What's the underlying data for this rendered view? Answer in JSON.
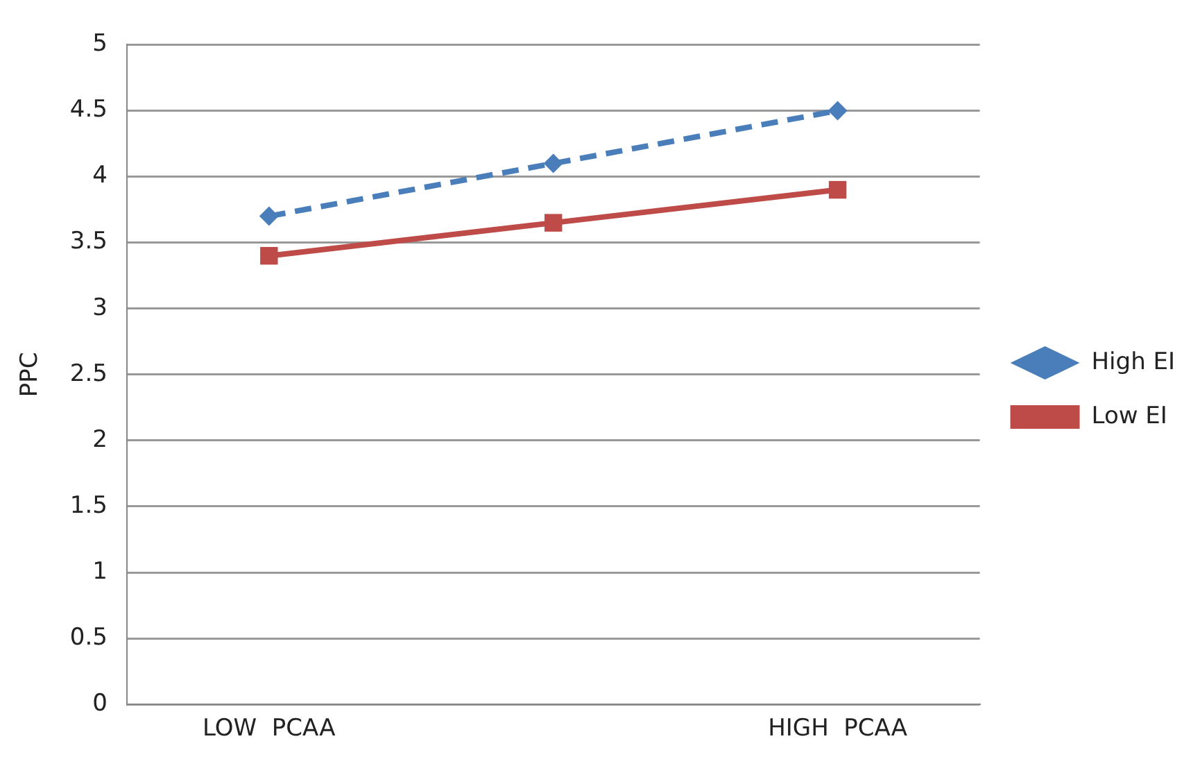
{
  "chart_data": {
    "type": "line",
    "ylabel": "PPC",
    "categories": [
      "LOW  PCAA",
      null,
      "HIGH  PCAA"
    ],
    "series": [
      {
        "name": "High EI",
        "color": "#4a7ebb",
        "values": [
          3.7,
          4.1,
          4.5
        ],
        "marker": "diamond",
        "line_style": "dashed"
      },
      {
        "name": "Low EI",
        "color": "#be4b48",
        "values": [
          3.4,
          3.65,
          3.9
        ],
        "marker": "square",
        "line_style": "solid"
      }
    ],
    "ylim": [
      0,
      5
    ],
    "yticks": [
      0,
      0.5,
      1,
      1.5,
      2,
      2.5,
      3,
      3.5,
      4,
      4.5,
      5
    ],
    "grid": "y",
    "legend": "right"
  }
}
